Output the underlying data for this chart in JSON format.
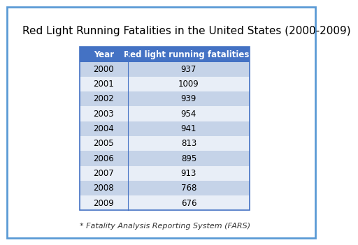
{
  "title": "Red Light Running Fatalities in the United States (2000-2009)",
  "footnote": "* Fatality Analysis Reporting System (FARS)",
  "col_headers": [
    "Year",
    "Red light running fatalities*"
  ],
  "years": [
    "2000",
    "2001",
    "2002",
    "2003",
    "2004",
    "2005",
    "2006",
    "2007",
    "2008",
    "2009"
  ],
  "fatalities": [
    "937",
    "1009",
    "939",
    "954",
    "941",
    "813",
    "895",
    "913",
    "768",
    "676"
  ],
  "header_bg": "#4472C4",
  "header_text": "#FFFFFF",
  "row_bg_even": "#C5D3E8",
  "row_bg_odd": "#E8EEF7",
  "border_color": "#4472C4",
  "outer_border_color": "#5B9BD5",
  "outer_bg": "#FFFFFF",
  "fig_bg": "#FFFFFF",
  "title_fontsize": 11,
  "cell_fontsize": 8.5,
  "header_fontsize": 8.5,
  "footnote_fontsize": 8
}
